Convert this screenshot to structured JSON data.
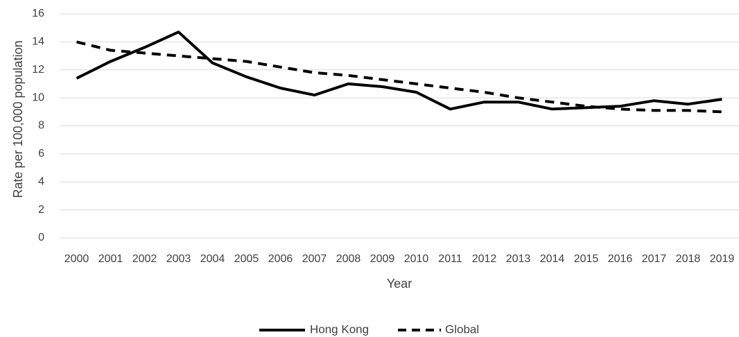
{
  "chart_data": {
    "type": "line",
    "title": "",
    "xlabel": "Year",
    "ylabel": "Rate per 100,000 population",
    "categories": [
      "2000",
      "2001",
      "2002",
      "2003",
      "2004",
      "2005",
      "2006",
      "2007",
      "2008",
      "2009",
      "2010",
      "2011",
      "2012",
      "2013",
      "2014",
      "2015",
      "2016",
      "2017",
      "2018",
      "2019"
    ],
    "ylim": [
      0,
      16
    ],
    "yticks": [
      "0",
      "2",
      "4",
      "6",
      "8",
      "10",
      "12",
      "14",
      "16"
    ],
    "grid": true,
    "legend_position": "bottom",
    "series": [
      {
        "name": "Hong Kong",
        "style": "solid",
        "color": "#000000",
        "values": [
          11.4,
          12.6,
          13.6,
          14.7,
          12.5,
          11.5,
          10.7,
          10.2,
          11.0,
          10.8,
          10.4,
          9.2,
          9.7,
          9.7,
          9.2,
          9.3,
          9.4,
          9.8,
          9.55,
          9.9
        ]
      },
      {
        "name": "Global",
        "style": "dashed",
        "color": "#000000",
        "values": [
          14.0,
          13.4,
          13.2,
          13.0,
          12.8,
          12.6,
          12.2,
          11.8,
          11.6,
          11.3,
          11.0,
          10.7,
          10.4,
          10.0,
          9.7,
          9.4,
          9.2,
          9.1,
          9.1,
          9.0
        ]
      }
    ]
  }
}
